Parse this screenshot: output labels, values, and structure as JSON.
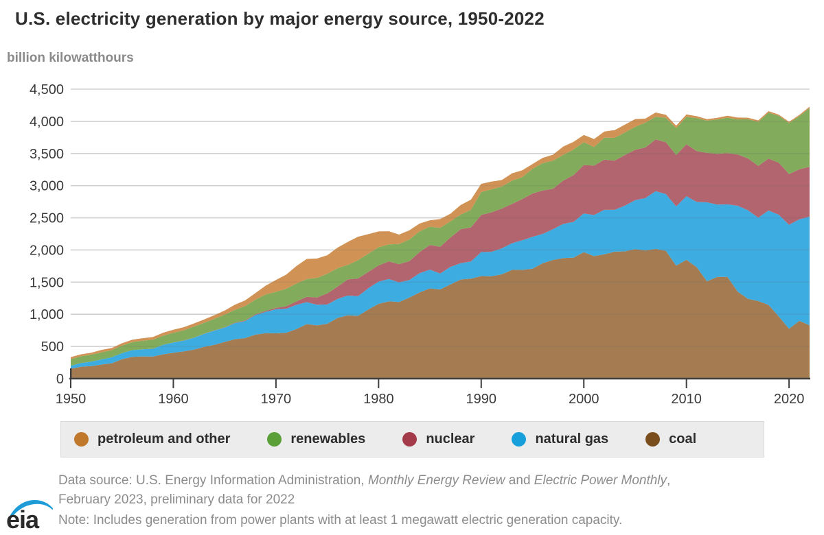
{
  "title": "U.S. electricity generation by major energy source, 1950-2022",
  "subtitle": "billion kilowatthours",
  "footer": {
    "source_parts": [
      {
        "text": "Data source: U.S. Energy Information Administration, ",
        "italic": false
      },
      {
        "text": "Monthly Energy Review",
        "italic": true
      },
      {
        "text": " and ",
        "italic": false
      },
      {
        "text": "Electric Power Monthly",
        "italic": true
      },
      {
        "text": ",",
        "italic": false
      }
    ],
    "source_line2": "February 2023, preliminary data for 2022",
    "note": "Note: Includes generation from power plants with at least 1 megawatt electric generation capacity."
  },
  "logo": {
    "text": "eia",
    "swoosh_color": "#1e9cd7",
    "text_color": "#2a2a2a"
  },
  "chart_data": {
    "type": "area",
    "stacked": true,
    "title": "U.S. electricity generation by major energy source, 1950-2022",
    "ylabel": "billion kilowatthours",
    "x_start": 1950,
    "x_end": 2022,
    "x_ticks": [
      1950,
      1960,
      1970,
      1980,
      1990,
      2000,
      2010,
      2020
    ],
    "y_ticks": [
      0,
      500,
      1000,
      1500,
      2000,
      2500,
      3000,
      3500,
      4000,
      4500
    ],
    "ylim": [
      0,
      4500
    ],
    "grid": true,
    "legend_position": "bottom",
    "axis_color": "#3f3f3f",
    "grid_color": "#e3e3e3",
    "label_color": "#3a3a3a",
    "series": [
      {
        "name": "coal",
        "legend_color": "#7a4e1c",
        "area_color": "#a57c52",
        "values": [
          155,
          185,
          195,
          219,
          239,
          301,
          339,
          346,
          344,
          378,
          403,
          422,
          450,
          494,
          526,
          571,
          613,
          630,
          685,
          706,
          704,
          713,
          771,
          848,
          828,
          853,
          944,
          985,
          976,
          1075,
          1162,
          1203,
          1192,
          1259,
          1342,
          1402,
          1386,
          1464,
          1541,
          1554,
          1594,
          1591,
          1621,
          1690,
          1691,
          1709,
          1795,
          1845,
          1874,
          1881,
          1966,
          1904,
          1933,
          1974,
          1978,
          2013,
          1991,
          2016,
          1986,
          1756,
          1847,
          1733,
          1514,
          1581,
          1582,
          1352,
          1239,
          1206,
          1146,
          966,
          774,
          898,
          831
        ]
      },
      {
        "name": "natural gas",
        "legend_color": "#169fdb",
        "area_color": "#3dace1",
        "values": [
          45,
          57,
          68,
          80,
          94,
          95,
          104,
          110,
          120,
          147,
          158,
          169,
          184,
          201,
          220,
          222,
          251,
          265,
          304,
          333,
          373,
          374,
          376,
          341,
          320,
          300,
          295,
          306,
          305,
          329,
          346,
          346,
          305,
          274,
          297,
          292,
          249,
          273,
          253,
          267,
          373,
          381,
          404,
          415,
          460,
          496,
          455,
          479,
          531,
          556,
          601,
          639,
          691,
          650,
          710,
          761,
          816,
          897,
          883,
          921,
          988,
          1014,
          1226,
          1124,
          1127,
          1335,
          1378,
          1296,
          1468,
          1582,
          1617,
          1579,
          1689
        ]
      },
      {
        "name": "nuclear",
        "legend_color": "#a43b4b",
        "area_color": "#b2646f",
        "values": [
          0,
          0,
          0,
          0,
          0,
          0,
          0,
          0,
          0,
          0,
          1,
          2,
          2,
          3,
          3,
          4,
          6,
          8,
          13,
          14,
          22,
          38,
          54,
          83,
          114,
          173,
          191,
          251,
          276,
          255,
          251,
          273,
          283,
          294,
          328,
          384,
          414,
          455,
          527,
          529,
          577,
          613,
          619,
          610,
          640,
          673,
          675,
          628,
          674,
          728,
          754,
          769,
          780,
          764,
          788,
          782,
          787,
          806,
          806,
          799,
          807,
          790,
          769,
          789,
          797,
          797,
          806,
          805,
          807,
          809,
          790,
          778,
          772
        ]
      },
      {
        "name": "renewables",
        "legend_color": "#5b9f38",
        "area_color": "#82ac5c",
        "values": [
          101,
          106,
          109,
          109,
          110,
          117,
          125,
          132,
          142,
          141,
          150,
          156,
          172,
          170,
          180,
          197,
          199,
          225,
          225,
          254,
          251,
          272,
          277,
          275,
          304,
          303,
          287,
          225,
          284,
          283,
          283,
          264,
          312,
          335,
          324,
          284,
          294,
          253,
          229,
          274,
          357,
          358,
          342,
          363,
          342,
          384,
          426,
          437,
          400,
          398,
          356,
          288,
          343,
          355,
          351,
          357,
          385,
          352,
          380,
          417,
          427,
          513,
          502,
          534,
          551,
          546,
          609,
          687,
          713,
          728,
          792,
          826,
          913
        ]
      },
      {
        "name": "petroleum and other",
        "legend_color": "#c0792c",
        "area_color": "#d19355",
        "values": [
          34,
          29,
          30,
          39,
          33,
          37,
          37,
          40,
          40,
          47,
          48,
          50,
          49,
          52,
          57,
          65,
          79,
          89,
          104,
          138,
          184,
          220,
          274,
          314,
          301,
          289,
          320,
          358,
          365,
          304,
          246,
          206,
          147,
          144,
          120,
          100,
          137,
          118,
          149,
          158,
          127,
          120,
          101,
          113,
          106,
          75,
          82,
          93,
          129,
          119,
          111,
          125,
          95,
          120,
          121,
          122,
          64,
          66,
          46,
          39,
          37,
          30,
          23,
          27,
          30,
          28,
          24,
          21,
          25,
          19,
          21,
          19,
          23
        ]
      }
    ]
  }
}
